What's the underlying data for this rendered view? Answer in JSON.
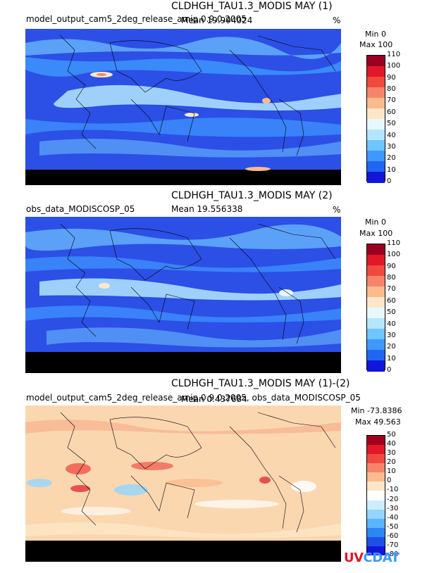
{
  "panels": [
    {
      "title": "CLDHGH_TAU1.3_MODIS MAY (1)",
      "left_label": "model_output_cam5_2deg_release_amip.0.9.0.2005",
      "mean_label": "Mean 19.994024",
      "units": "%",
      "min_label": "Min 0",
      "max_label": "Max 100",
      "colorbar_levels": [
        "110",
        "100",
        "90",
        "80",
        "70",
        "60",
        "50",
        "40",
        "30",
        "20",
        "10",
        "0"
      ],
      "colorbar_colors": [
        "#9b0020",
        "#e0182a",
        "#f04a3e",
        "#f7846a",
        "#fbbb8e",
        "#fde7c8",
        "#e8f8ff",
        "#b4e6ff",
        "#6fc5ff",
        "#3e98ff",
        "#2166f2",
        "#1216d8"
      ],
      "background": "#2c4fe6"
    },
    {
      "title": "CLDHGH_TAU1.3_MODIS MAY (2)",
      "left_label": "obs_data_MODISCOSP_05",
      "mean_label": "Mean 19.556338",
      "units": "%",
      "min_label": "Min 0",
      "max_label": "Max 100",
      "colorbar_levels": [
        "110",
        "100",
        "90",
        "80",
        "70",
        "60",
        "50",
        "40",
        "30",
        "20",
        "10",
        "0"
      ],
      "colorbar_colors": [
        "#9b0020",
        "#e0182a",
        "#f04a3e",
        "#f7846a",
        "#fbbb8e",
        "#fde7c8",
        "#e8f8ff",
        "#b4e6ff",
        "#6fc5ff",
        "#3e98ff",
        "#2166f2",
        "#1216d8"
      ],
      "background": "#2c4fe6"
    },
    {
      "title": "CLDHGH_TAU1.3_MODIS MAY (1)-(2)",
      "left_label": "model_output_cam5_2deg_release_amip.0.9.0.2005, obs_data_MODISCOSP_05",
      "mean_label": "Mean 0.437684",
      "units": "",
      "min_label": "Min -73.8386",
      "max_label": "Max 49.563",
      "colorbar_levels": [
        "50",
        "40",
        "30",
        "20",
        "10",
        "0",
        "-10",
        "-20",
        "-30",
        "-40",
        "-50",
        "-60",
        "-70",
        "-80"
      ],
      "colorbar_colors": [
        "#a3001c",
        "#e0182a",
        "#f04a3e",
        "#f7846a",
        "#fbbb8e",
        "#fde7c8",
        "#ffffff",
        "#cbeeff",
        "#93d6ff",
        "#5ab5ff",
        "#2d86f5",
        "#1f50e6",
        "#1216d8"
      ],
      "background": "#fbd7b0"
    }
  ],
  "logo": {
    "text_a": "UV",
    "text_b": "CDAT"
  }
}
